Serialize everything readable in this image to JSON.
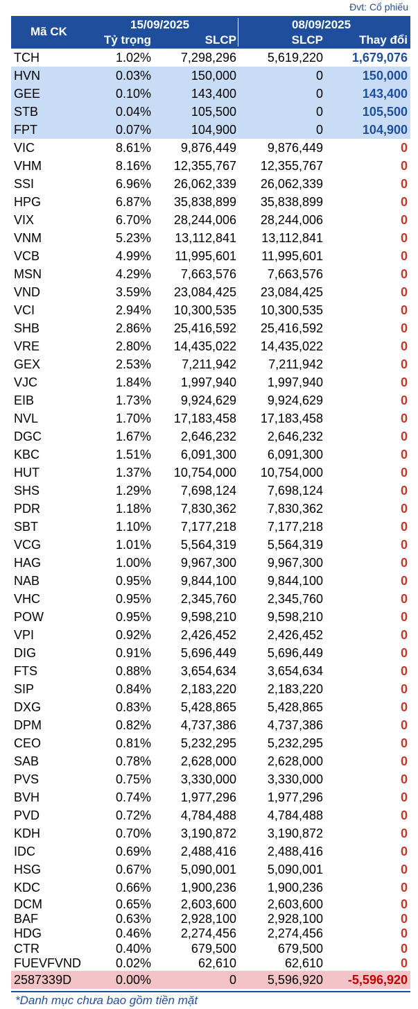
{
  "unit": "Đvt: Cổ phiếu",
  "header": {
    "code": "Mã CK",
    "date1": "15/09/2025",
    "date2": "08/09/2025",
    "weight": "Tỷ trọng",
    "slcp1": "SLCP",
    "slcp2": "SLCP",
    "change": "Thay đổi"
  },
  "rows": [
    {
      "code": "TCH",
      "weight": "1.02%",
      "slcp_a": "7,298,296",
      "slcp_b": "5,619,220",
      "change": "1,679,076",
      "style": "normal",
      "sign": "pos"
    },
    {
      "code": "HVN",
      "weight": "0.03%",
      "slcp_a": "150,000",
      "slcp_b": "0",
      "change": "150,000",
      "style": "hl",
      "sign": "pos"
    },
    {
      "code": "GEE",
      "weight": "0.10%",
      "slcp_a": "143,400",
      "slcp_b": "0",
      "change": "143,400",
      "style": "hl",
      "sign": "pos"
    },
    {
      "code": "STB",
      "weight": "0.04%",
      "slcp_a": "105,500",
      "slcp_b": "0",
      "change": "105,500",
      "style": "hl",
      "sign": "pos"
    },
    {
      "code": "FPT",
      "weight": "0.07%",
      "slcp_a": "104,900",
      "slcp_b": "0",
      "change": "104,900",
      "style": "hl",
      "sign": "pos"
    },
    {
      "code": "VIC",
      "weight": "8.61%",
      "slcp_a": "9,876,449",
      "slcp_b": "9,876,449",
      "change": "0",
      "style": "normal",
      "sign": "zero"
    },
    {
      "code": "VHM",
      "weight": "8.16%",
      "slcp_a": "12,355,767",
      "slcp_b": "12,355,767",
      "change": "0",
      "style": "normal",
      "sign": "zero"
    },
    {
      "code": "SSI",
      "weight": "6.96%",
      "slcp_a": "26,062,339",
      "slcp_b": "26,062,339",
      "change": "0",
      "style": "normal",
      "sign": "zero"
    },
    {
      "code": "HPG",
      "weight": "6.87%",
      "slcp_a": "35,838,899",
      "slcp_b": "35,838,899",
      "change": "0",
      "style": "normal",
      "sign": "zero"
    },
    {
      "code": "VIX",
      "weight": "6.70%",
      "slcp_a": "28,244,006",
      "slcp_b": "28,244,006",
      "change": "0",
      "style": "normal",
      "sign": "zero"
    },
    {
      "code": "VNM",
      "weight": "5.23%",
      "slcp_a": "13,112,841",
      "slcp_b": "13,112,841",
      "change": "0",
      "style": "normal",
      "sign": "zero"
    },
    {
      "code": "VCB",
      "weight": "4.99%",
      "slcp_a": "11,995,601",
      "slcp_b": "11,995,601",
      "change": "0",
      "style": "normal",
      "sign": "zero"
    },
    {
      "code": "MSN",
      "weight": "4.29%",
      "slcp_a": "7,663,576",
      "slcp_b": "7,663,576",
      "change": "0",
      "style": "normal",
      "sign": "zero"
    },
    {
      "code": "VND",
      "weight": "3.59%",
      "slcp_a": "23,084,425",
      "slcp_b": "23,084,425",
      "change": "0",
      "style": "normal",
      "sign": "zero"
    },
    {
      "code": "VCI",
      "weight": "2.94%",
      "slcp_a": "10,300,535",
      "slcp_b": "10,300,535",
      "change": "0",
      "style": "normal",
      "sign": "zero"
    },
    {
      "code": "SHB",
      "weight": "2.86%",
      "slcp_a": "25,416,592",
      "slcp_b": "25,416,592",
      "change": "0",
      "style": "normal",
      "sign": "zero"
    },
    {
      "code": "VRE",
      "weight": "2.80%",
      "slcp_a": "14,435,022",
      "slcp_b": "14,435,022",
      "change": "0",
      "style": "normal",
      "sign": "zero"
    },
    {
      "code": "GEX",
      "weight": "2.53%",
      "slcp_a": "7,211,942",
      "slcp_b": "7,211,942",
      "change": "0",
      "style": "normal",
      "sign": "zero"
    },
    {
      "code": "VJC",
      "weight": "1.84%",
      "slcp_a": "1,997,940",
      "slcp_b": "1,997,940",
      "change": "0",
      "style": "normal",
      "sign": "zero"
    },
    {
      "code": "EIB",
      "weight": "1.73%",
      "slcp_a": "9,924,629",
      "slcp_b": "9,924,629",
      "change": "0",
      "style": "normal",
      "sign": "zero"
    },
    {
      "code": "NVL",
      "weight": "1.70%",
      "slcp_a": "17,183,458",
      "slcp_b": "17,183,458",
      "change": "0",
      "style": "normal",
      "sign": "zero"
    },
    {
      "code": "DGC",
      "weight": "1.67%",
      "slcp_a": "2,646,232",
      "slcp_b": "2,646,232",
      "change": "0",
      "style": "normal",
      "sign": "zero"
    },
    {
      "code": "KBC",
      "weight": "1.51%",
      "slcp_a": "6,091,300",
      "slcp_b": "6,091,300",
      "change": "0",
      "style": "normal",
      "sign": "zero"
    },
    {
      "code": "HUT",
      "weight": "1.37%",
      "slcp_a": "10,754,000",
      "slcp_b": "10,754,000",
      "change": "0",
      "style": "normal",
      "sign": "zero"
    },
    {
      "code": "SHS",
      "weight": "1.29%",
      "slcp_a": "7,698,124",
      "slcp_b": "7,698,124",
      "change": "0",
      "style": "normal",
      "sign": "zero"
    },
    {
      "code": "PDR",
      "weight": "1.18%",
      "slcp_a": "7,830,362",
      "slcp_b": "7,830,362",
      "change": "0",
      "style": "normal",
      "sign": "zero"
    },
    {
      "code": "SBT",
      "weight": "1.10%",
      "slcp_a": "7,177,218",
      "slcp_b": "7,177,218",
      "change": "0",
      "style": "normal",
      "sign": "zero"
    },
    {
      "code": "VCG",
      "weight": "1.01%",
      "slcp_a": "5,564,319",
      "slcp_b": "5,564,319",
      "change": "0",
      "style": "normal",
      "sign": "zero"
    },
    {
      "code": "HAG",
      "weight": "1.00%",
      "slcp_a": "9,967,300",
      "slcp_b": "9,967,300",
      "change": "0",
      "style": "normal",
      "sign": "zero"
    },
    {
      "code": "NAB",
      "weight": "0.95%",
      "slcp_a": "9,844,100",
      "slcp_b": "9,844,100",
      "change": "0",
      "style": "normal",
      "sign": "zero"
    },
    {
      "code": "VHC",
      "weight": "0.95%",
      "slcp_a": "2,345,760",
      "slcp_b": "2,345,760",
      "change": "0",
      "style": "normal",
      "sign": "zero"
    },
    {
      "code": "POW",
      "weight": "0.95%",
      "slcp_a": "9,598,210",
      "slcp_b": "9,598,210",
      "change": "0",
      "style": "normal",
      "sign": "zero"
    },
    {
      "code": "VPI",
      "weight": "0.92%",
      "slcp_a": "2,426,452",
      "slcp_b": "2,426,452",
      "change": "0",
      "style": "normal",
      "sign": "zero"
    },
    {
      "code": "DIG",
      "weight": "0.91%",
      "slcp_a": "5,696,449",
      "slcp_b": "5,696,449",
      "change": "0",
      "style": "normal",
      "sign": "zero"
    },
    {
      "code": "FTS",
      "weight": "0.88%",
      "slcp_a": "3,654,634",
      "slcp_b": "3,654,634",
      "change": "0",
      "style": "normal",
      "sign": "zero"
    },
    {
      "code": "SIP",
      "weight": "0.84%",
      "slcp_a": "2,183,220",
      "slcp_b": "2,183,220",
      "change": "0",
      "style": "normal",
      "sign": "zero"
    },
    {
      "code": "DXG",
      "weight": "0.83%",
      "slcp_a": "5,428,865",
      "slcp_b": "5,428,865",
      "change": "0",
      "style": "normal",
      "sign": "zero"
    },
    {
      "code": "DPM",
      "weight": "0.82%",
      "slcp_a": "4,737,386",
      "slcp_b": "4,737,386",
      "change": "0",
      "style": "normal",
      "sign": "zero"
    },
    {
      "code": "CEO",
      "weight": "0.81%",
      "slcp_a": "5,232,295",
      "slcp_b": "5,232,295",
      "change": "0",
      "style": "normal",
      "sign": "zero"
    },
    {
      "code": "SAB",
      "weight": "0.78%",
      "slcp_a": "2,628,000",
      "slcp_b": "2,628,000",
      "change": "0",
      "style": "normal",
      "sign": "zero"
    },
    {
      "code": "PVS",
      "weight": "0.75%",
      "slcp_a": "3,330,000",
      "slcp_b": "3,330,000",
      "change": "0",
      "style": "normal",
      "sign": "zero"
    },
    {
      "code": "BVH",
      "weight": "0.74%",
      "slcp_a": "1,977,296",
      "slcp_b": "1,977,296",
      "change": "0",
      "style": "normal",
      "sign": "zero"
    },
    {
      "code": "PVD",
      "weight": "0.72%",
      "slcp_a": "4,784,488",
      "slcp_b": "4,784,488",
      "change": "0",
      "style": "normal",
      "sign": "zero"
    },
    {
      "code": "KDH",
      "weight": "0.70%",
      "slcp_a": "3,190,872",
      "slcp_b": "3,190,872",
      "change": "0",
      "style": "normal",
      "sign": "zero"
    },
    {
      "code": "IDC",
      "weight": "0.69%",
      "slcp_a": "2,488,416",
      "slcp_b": "2,488,416",
      "change": "0",
      "style": "normal",
      "sign": "zero"
    },
    {
      "code": "HSG",
      "weight": "0.67%",
      "slcp_a": "5,090,001",
      "slcp_b": "5,090,001",
      "change": "0",
      "style": "normal",
      "sign": "zero"
    },
    {
      "code": "KDC",
      "weight": "0.66%",
      "slcp_a": "1,900,236",
      "slcp_b": "1,900,236",
      "change": "0",
      "style": "normal",
      "sign": "zero"
    },
    {
      "code": "DCM",
      "weight": "0.65%",
      "slcp_a": "2,603,600",
      "slcp_b": "2,603,600",
      "change": "0",
      "style": "tight",
      "sign": "zero"
    },
    {
      "code": "BAF",
      "weight": "0.63%",
      "slcp_a": "2,928,100",
      "slcp_b": "2,928,100",
      "change": "0",
      "style": "tight",
      "sign": "zero"
    },
    {
      "code": "HDG",
      "weight": "0.46%",
      "slcp_a": "2,274,456",
      "slcp_b": "2,274,456",
      "change": "0",
      "style": "tight",
      "sign": "zero"
    },
    {
      "code": "CTR",
      "weight": "0.40%",
      "slcp_a": "679,500",
      "slcp_b": "679,500",
      "change": "0",
      "style": "tight",
      "sign": "zero"
    },
    {
      "code": "FUEVFVND",
      "weight": "0.02%",
      "slcp_a": "62,610",
      "slcp_b": "62,610",
      "change": "0",
      "style": "tight",
      "sign": "zero"
    },
    {
      "code": "2587339D",
      "weight": "0.00%",
      "slcp_a": "0",
      "slcp_b": "5,596,920",
      "change": "-5,596,920",
      "style": "neg",
      "sign": "neg"
    }
  ],
  "footnote": "*Danh mục chưa bao gồm tiền mặt",
  "colors": {
    "header_bg": "#1f4f9c",
    "highlight": "#c8dcf6",
    "negative_row": "#f3c3c7",
    "zero_text": "#c0392b"
  }
}
